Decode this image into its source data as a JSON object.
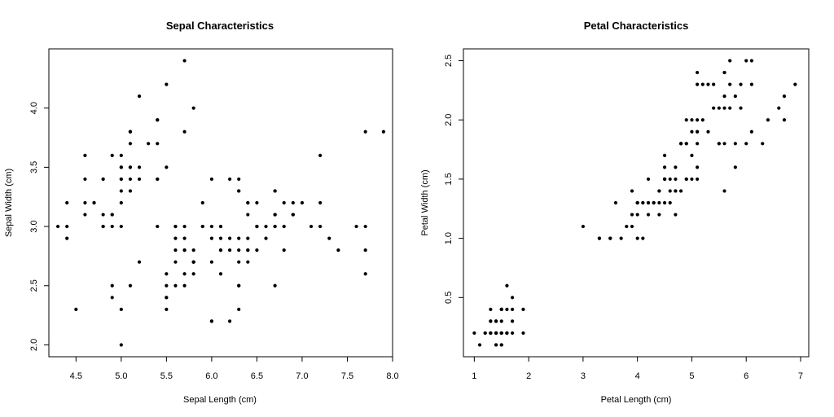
{
  "chart_data": [
    {
      "type": "scatter",
      "title": "Sepal Characteristics",
      "xlabel": "Sepal Length (cm)",
      "ylabel": "Sepal Width (cm)",
      "xlim": [
        4.2,
        8.0
      ],
      "ylim": [
        1.9,
        4.5
      ],
      "xticks": [
        "4.5",
        "5.0",
        "5.5",
        "6.0",
        "6.5",
        "7.0",
        "7.5",
        "8.0"
      ],
      "yticks": [
        "2.0",
        "2.5",
        "3.0",
        "3.5",
        "4.0"
      ],
      "grid": false,
      "point_color": "#000000",
      "points": [
        [
          5.1,
          3.5
        ],
        [
          4.9,
          3.0
        ],
        [
          4.7,
          3.2
        ],
        [
          4.6,
          3.1
        ],
        [
          5.0,
          3.6
        ],
        [
          5.4,
          3.9
        ],
        [
          4.6,
          3.4
        ],
        [
          5.0,
          3.4
        ],
        [
          4.4,
          2.9
        ],
        [
          4.9,
          3.1
        ],
        [
          5.4,
          3.7
        ],
        [
          4.8,
          3.4
        ],
        [
          4.8,
          3.0
        ],
        [
          4.3,
          3.0
        ],
        [
          5.8,
          4.0
        ],
        [
          5.7,
          4.4
        ],
        [
          5.4,
          3.9
        ],
        [
          5.1,
          3.5
        ],
        [
          5.7,
          3.8
        ],
        [
          5.1,
          3.8
        ],
        [
          5.4,
          3.4
        ],
        [
          5.1,
          3.7
        ],
        [
          4.6,
          3.6
        ],
        [
          5.1,
          3.3
        ],
        [
          4.8,
          3.4
        ],
        [
          5.0,
          3.0
        ],
        [
          5.0,
          3.4
        ],
        [
          5.2,
          3.5
        ],
        [
          5.2,
          3.4
        ],
        [
          4.7,
          3.2
        ],
        [
          4.8,
          3.1
        ],
        [
          5.4,
          3.4
        ],
        [
          5.2,
          4.1
        ],
        [
          5.5,
          4.2
        ],
        [
          4.9,
          3.1
        ],
        [
          5.0,
          3.2
        ],
        [
          5.5,
          3.5
        ],
        [
          4.9,
          3.6
        ],
        [
          4.4,
          3.0
        ],
        [
          5.1,
          3.4
        ],
        [
          5.0,
          3.5
        ],
        [
          4.5,
          2.3
        ],
        [
          4.4,
          3.2
        ],
        [
          5.0,
          3.5
        ],
        [
          5.1,
          3.8
        ],
        [
          4.8,
          3.0
        ],
        [
          5.1,
          3.8
        ],
        [
          4.6,
          3.2
        ],
        [
          5.3,
          3.7
        ],
        [
          5.0,
          3.3
        ],
        [
          7.0,
          3.2
        ],
        [
          6.4,
          3.2
        ],
        [
          6.9,
          3.1
        ],
        [
          5.5,
          2.3
        ],
        [
          6.5,
          2.8
        ],
        [
          5.7,
          2.8
        ],
        [
          6.3,
          3.3
        ],
        [
          4.9,
          2.4
        ],
        [
          6.6,
          2.9
        ],
        [
          5.2,
          2.7
        ],
        [
          5.0,
          2.0
        ],
        [
          5.9,
          3.0
        ],
        [
          6.0,
          2.2
        ],
        [
          6.1,
          2.9
        ],
        [
          5.6,
          2.9
        ],
        [
          6.7,
          3.1
        ],
        [
          5.6,
          3.0
        ],
        [
          5.8,
          2.7
        ],
        [
          6.2,
          2.2
        ],
        [
          5.6,
          2.5
        ],
        [
          5.9,
          3.2
        ],
        [
          6.1,
          2.8
        ],
        [
          6.3,
          2.5
        ],
        [
          6.1,
          2.8
        ],
        [
          6.4,
          2.9
        ],
        [
          6.6,
          3.0
        ],
        [
          6.8,
          2.8
        ],
        [
          6.7,
          3.0
        ],
        [
          6.0,
          2.9
        ],
        [
          5.7,
          2.6
        ],
        [
          5.5,
          2.4
        ],
        [
          5.5,
          2.4
        ],
        [
          5.8,
          2.7
        ],
        [
          6.0,
          2.7
        ],
        [
          5.4,
          3.0
        ],
        [
          6.0,
          3.4
        ],
        [
          6.7,
          3.1
        ],
        [
          6.3,
          2.3
        ],
        [
          5.6,
          3.0
        ],
        [
          5.5,
          2.5
        ],
        [
          5.5,
          2.6
        ],
        [
          6.1,
          3.0
        ],
        [
          5.8,
          2.6
        ],
        [
          5.0,
          2.3
        ],
        [
          5.6,
          2.7
        ],
        [
          5.7,
          3.0
        ],
        [
          5.7,
          2.9
        ],
        [
          6.2,
          2.9
        ],
        [
          5.1,
          2.5
        ],
        [
          5.7,
          2.8
        ],
        [
          6.3,
          3.3
        ],
        [
          5.8,
          2.7
        ],
        [
          7.1,
          3.0
        ],
        [
          6.3,
          2.9
        ],
        [
          6.5,
          3.0
        ],
        [
          7.6,
          3.0
        ],
        [
          4.9,
          2.5
        ],
        [
          7.3,
          2.9
        ],
        [
          6.7,
          2.5
        ],
        [
          7.2,
          3.6
        ],
        [
          6.5,
          3.2
        ],
        [
          6.4,
          2.7
        ],
        [
          6.8,
          3.0
        ],
        [
          5.7,
          2.5
        ],
        [
          5.8,
          2.8
        ],
        [
          6.4,
          3.2
        ],
        [
          6.5,
          3.0
        ],
        [
          7.7,
          3.8
        ],
        [
          7.7,
          2.6
        ],
        [
          6.0,
          2.2
        ],
        [
          6.9,
          3.2
        ],
        [
          5.6,
          2.8
        ],
        [
          7.7,
          2.8
        ],
        [
          6.3,
          2.7
        ],
        [
          6.7,
          3.3
        ],
        [
          7.2,
          3.2
        ],
        [
          6.2,
          2.8
        ],
        [
          6.1,
          3.0
        ],
        [
          6.4,
          2.8
        ],
        [
          7.2,
          3.0
        ],
        [
          7.4,
          2.8
        ],
        [
          7.9,
          3.8
        ],
        [
          6.4,
          2.8
        ],
        [
          6.3,
          2.8
        ],
        [
          6.1,
          2.6
        ],
        [
          7.7,
          3.0
        ],
        [
          6.3,
          3.4
        ],
        [
          6.4,
          3.1
        ],
        [
          6.0,
          3.0
        ],
        [
          6.9,
          3.1
        ],
        [
          6.7,
          3.1
        ],
        [
          6.9,
          3.1
        ],
        [
          5.8,
          2.7
        ],
        [
          6.8,
          3.2
        ],
        [
          6.7,
          3.3
        ],
        [
          6.7,
          3.0
        ],
        [
          6.3,
          2.5
        ],
        [
          6.5,
          3.0
        ],
        [
          6.2,
          3.4
        ],
        [
          5.9,
          3.0
        ]
      ]
    },
    {
      "type": "scatter",
      "title": "Petal Characteristics",
      "xlabel": "Petal Length (cm)",
      "ylabel": "Petal Width (cm)",
      "xlim": [
        0.8,
        7.15
      ],
      "ylim": [
        0.0,
        2.6
      ],
      "xticks": [
        "1",
        "2",
        "3",
        "4",
        "5",
        "6",
        "7"
      ],
      "yticks": [
        "0.5",
        "1.0",
        "1.5",
        "2.0",
        "2.5"
      ],
      "grid": false,
      "point_color": "#000000",
      "points": [
        [
          1.4,
          0.2
        ],
        [
          1.4,
          0.2
        ],
        [
          1.3,
          0.2
        ],
        [
          1.5,
          0.2
        ],
        [
          1.4,
          0.2
        ],
        [
          1.7,
          0.4
        ],
        [
          1.4,
          0.3
        ],
        [
          1.5,
          0.2
        ],
        [
          1.4,
          0.2
        ],
        [
          1.5,
          0.1
        ],
        [
          1.5,
          0.2
        ],
        [
          1.6,
          0.2
        ],
        [
          1.4,
          0.1
        ],
        [
          1.1,
          0.1
        ],
        [
          1.2,
          0.2
        ],
        [
          1.5,
          0.4
        ],
        [
          1.3,
          0.4
        ],
        [
          1.4,
          0.3
        ],
        [
          1.7,
          0.3
        ],
        [
          1.5,
          0.3
        ],
        [
          1.7,
          0.2
        ],
        [
          1.5,
          0.4
        ],
        [
          1.0,
          0.2
        ],
        [
          1.7,
          0.5
        ],
        [
          1.9,
          0.2
        ],
        [
          1.6,
          0.2
        ],
        [
          1.6,
          0.4
        ],
        [
          1.5,
          0.2
        ],
        [
          1.4,
          0.2
        ],
        [
          1.6,
          0.2
        ],
        [
          1.6,
          0.2
        ],
        [
          1.5,
          0.4
        ],
        [
          1.5,
          0.1
        ],
        [
          1.4,
          0.2
        ],
        [
          1.5,
          0.2
        ],
        [
          1.2,
          0.2
        ],
        [
          1.3,
          0.2
        ],
        [
          1.4,
          0.1
        ],
        [
          1.3,
          0.2
        ],
        [
          1.5,
          0.2
        ],
        [
          1.3,
          0.3
        ],
        [
          1.3,
          0.3
        ],
        [
          1.3,
          0.2
        ],
        [
          1.6,
          0.6
        ],
        [
          1.9,
          0.4
        ],
        [
          1.4,
          0.3
        ],
        [
          1.6,
          0.2
        ],
        [
          1.4,
          0.2
        ],
        [
          1.5,
          0.2
        ],
        [
          1.4,
          0.2
        ],
        [
          4.7,
          1.4
        ],
        [
          4.5,
          1.5
        ],
        [
          4.9,
          1.5
        ],
        [
          4.0,
          1.3
        ],
        [
          4.6,
          1.5
        ],
        [
          4.5,
          1.3
        ],
        [
          4.7,
          1.6
        ],
        [
          3.3,
          1.0
        ],
        [
          4.6,
          1.3
        ],
        [
          3.9,
          1.4
        ],
        [
          3.5,
          1.0
        ],
        [
          4.2,
          1.5
        ],
        [
          4.0,
          1.0
        ],
        [
          4.7,
          1.4
        ],
        [
          3.6,
          1.3
        ],
        [
          4.4,
          1.4
        ],
        [
          4.5,
          1.5
        ],
        [
          4.1,
          1.0
        ],
        [
          4.5,
          1.5
        ],
        [
          3.9,
          1.1
        ],
        [
          4.8,
          1.8
        ],
        [
          4.0,
          1.3
        ],
        [
          4.9,
          1.5
        ],
        [
          4.7,
          1.2
        ],
        [
          4.3,
          1.3
        ],
        [
          4.4,
          1.4
        ],
        [
          4.8,
          1.4
        ],
        [
          5.0,
          1.7
        ],
        [
          4.5,
          1.5
        ],
        [
          3.5,
          1.0
        ],
        [
          3.8,
          1.1
        ],
        [
          3.7,
          1.0
        ],
        [
          3.9,
          1.2
        ],
        [
          5.1,
          1.6
        ],
        [
          4.5,
          1.5
        ],
        [
          4.5,
          1.6
        ],
        [
          4.7,
          1.5
        ],
        [
          4.4,
          1.3
        ],
        [
          4.1,
          1.3
        ],
        [
          4.0,
          1.3
        ],
        [
          4.4,
          1.2
        ],
        [
          4.6,
          1.4
        ],
        [
          4.0,
          1.2
        ],
        [
          3.3,
          1.0
        ],
        [
          4.2,
          1.3
        ],
        [
          4.2,
          1.2
        ],
        [
          4.2,
          1.3
        ],
        [
          4.3,
          1.3
        ],
        [
          3.0,
          1.1
        ],
        [
          4.1,
          1.3
        ],
        [
          6.0,
          2.5
        ],
        [
          5.1,
          1.9
        ],
        [
          5.9,
          2.1
        ],
        [
          5.6,
          1.8
        ],
        [
          5.8,
          2.2
        ],
        [
          6.6,
          2.1
        ],
        [
          4.5,
          1.7
        ],
        [
          6.3,
          1.8
        ],
        [
          5.8,
          1.8
        ],
        [
          6.1,
          2.5
        ],
        [
          5.1,
          2.0
        ],
        [
          5.3,
          1.9
        ],
        [
          5.5,
          2.1
        ],
        [
          5.0,
          2.0
        ],
        [
          5.1,
          2.4
        ],
        [
          5.3,
          2.3
        ],
        [
          5.5,
          1.8
        ],
        [
          6.7,
          2.2
        ],
        [
          6.9,
          2.3
        ],
        [
          5.0,
          1.5
        ],
        [
          5.7,
          2.3
        ],
        [
          4.9,
          2.0
        ],
        [
          6.7,
          2.0
        ],
        [
          4.9,
          1.8
        ],
        [
          5.7,
          2.1
        ],
        [
          6.0,
          1.8
        ],
        [
          4.8,
          1.8
        ],
        [
          4.9,
          1.8
        ],
        [
          5.6,
          2.1
        ],
        [
          5.8,
          1.6
        ],
        [
          6.1,
          1.9
        ],
        [
          6.4,
          2.0
        ],
        [
          5.6,
          2.2
        ],
        [
          5.1,
          1.5
        ],
        [
          5.6,
          1.4
        ],
        [
          6.1,
          2.3
        ],
        [
          5.6,
          2.4
        ],
        [
          5.5,
          1.8
        ],
        [
          4.8,
          1.8
        ],
        [
          5.4,
          2.1
        ],
        [
          5.6,
          2.4
        ],
        [
          5.1,
          2.3
        ],
        [
          5.1,
          1.9
        ],
        [
          5.9,
          2.3
        ],
        [
          5.7,
          2.5
        ],
        [
          5.2,
          2.3
        ],
        [
          5.0,
          1.9
        ],
        [
          5.2,
          2.0
        ],
        [
          5.4,
          2.3
        ],
        [
          5.1,
          1.8
        ]
      ]
    }
  ]
}
